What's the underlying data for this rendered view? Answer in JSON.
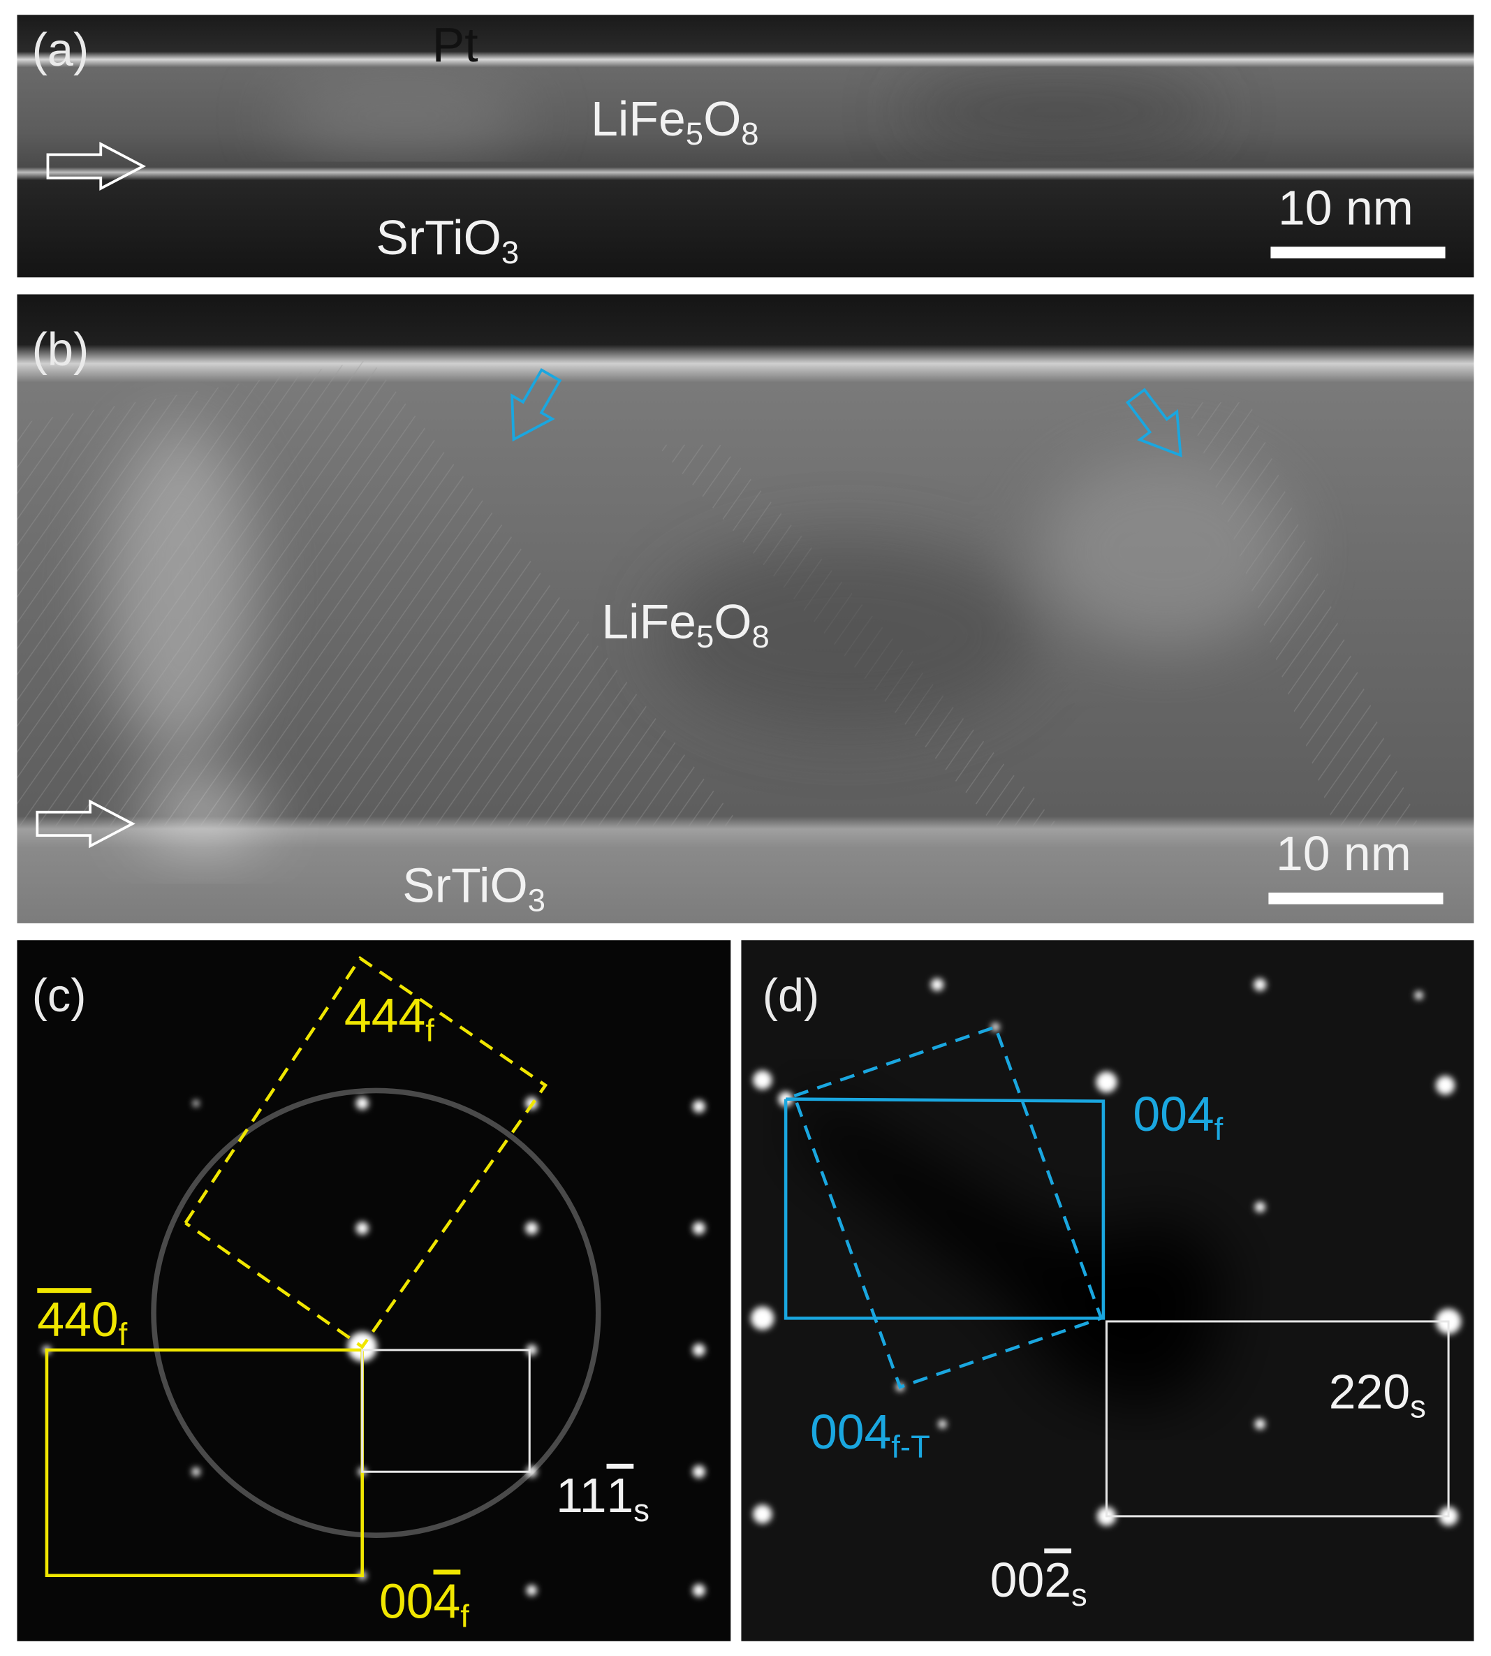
{
  "panels": [
    {
      "id": "(a)",
      "labels": [
        {
          "parts": [
            {
              "text": "Pt"
            }
          ]
        },
        {
          "parts": [
            {
              "text": "LiFe"
            },
            {
              "text": "5",
              "style": "sub"
            },
            {
              "text": "O"
            },
            {
              "text": "8",
              "style": "sub"
            }
          ]
        },
        {
          "parts": [
            {
              "text": "SrTiO"
            },
            {
              "text": "3",
              "style": "sub"
            }
          ]
        },
        {
          "parts": [
            {
              "text": "10 nm"
            }
          ]
        }
      ]
    },
    {
      "id": "(b)",
      "labels": [
        {
          "parts": [
            {
              "text": "LiFe"
            },
            {
              "text": "5",
              "style": "sub"
            },
            {
              "text": "O"
            },
            {
              "text": "8",
              "style": "sub"
            }
          ]
        },
        {
          "parts": [
            {
              "text": "SrTiO"
            },
            {
              "text": "3",
              "style": "sub"
            }
          ]
        },
        {
          "parts": [
            {
              "text": "10 nm"
            }
          ]
        }
      ]
    },
    {
      "id": "(c)",
      "labels": [
        {
          "parts": [
            {
              "text": "444"
            },
            {
              "text": "f",
              "style": "sub"
            }
          ]
        },
        {
          "parts": [
            {
              "text": "44",
              "style": "bar"
            },
            {
              "text": "0"
            },
            {
              "text": "f",
              "style": "sub"
            }
          ]
        },
        {
          "parts": [
            {
              "text": "00"
            },
            {
              "text": "4",
              "style": "bar"
            },
            {
              "text": "f",
              "style": "sub"
            }
          ]
        },
        {
          "parts": [
            {
              "text": "11"
            },
            {
              "text": "1",
              "style": "bar"
            },
            {
              "text": "s",
              "style": "sub"
            }
          ]
        }
      ]
    },
    {
      "id": "(d)",
      "labels": [
        {
          "parts": [
            {
              "text": "004"
            },
            {
              "text": "f",
              "style": "sub"
            }
          ]
        },
        {
          "parts": [
            {
              "text": "004"
            },
            {
              "text": "f-T",
              "style": "sub"
            }
          ]
        },
        {
          "parts": [
            {
              "text": "220"
            },
            {
              "text": "s",
              "style": "sub"
            }
          ]
        },
        {
          "parts": [
            {
              "text": "00"
            },
            {
              "text": "2",
              "style": "bar"
            },
            {
              "text": "s",
              "style": "sub"
            }
          ]
        }
      ]
    }
  ]
}
